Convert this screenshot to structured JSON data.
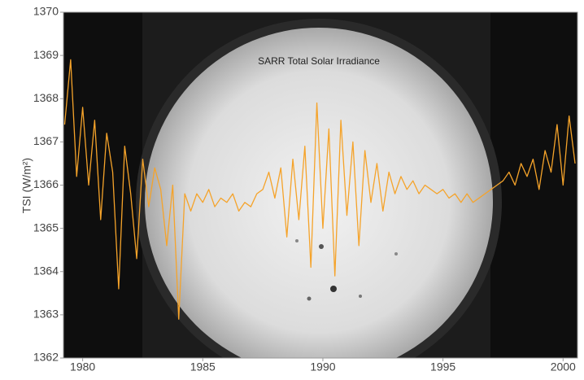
{
  "chart_data": {
    "type": "line",
    "title": "SARR Total Solar Irradiance",
    "y_label": "TSI (W/m²)",
    "x": [
      1979.25,
      1979.5,
      1979.75,
      1980.0,
      1980.25,
      1980.5,
      1980.75,
      1981.0,
      1981.25,
      1981.5,
      1981.75,
      1982.0,
      1982.25,
      1982.5,
      1982.75,
      1983.0,
      1983.25,
      1983.5,
      1983.75,
      1984.0,
      1984.25,
      1984.5,
      1984.75,
      1985.0,
      1985.25,
      1985.5,
      1985.75,
      1986.0,
      1986.25,
      1986.5,
      1986.75,
      1987.0,
      1987.25,
      1987.5,
      1987.75,
      1988.0,
      1988.25,
      1988.5,
      1988.75,
      1989.0,
      1989.25,
      1989.5,
      1989.75,
      1990.0,
      1990.25,
      1990.5,
      1990.75,
      1991.0,
      1991.25,
      1991.5,
      1991.75,
      1992.0,
      1992.25,
      1992.5,
      1992.75,
      1993.0,
      1993.25,
      1993.5,
      1993.75,
      1994.0,
      1994.25,
      1994.5,
      1994.75,
      1995.0,
      1995.25,
      1995.5,
      1995.75,
      1996.0,
      1996.25,
      1996.5,
      1996.75,
      1997.0,
      1997.25,
      1997.5,
      1997.75,
      1998.0,
      1998.25,
      1998.5,
      1998.75,
      1999.0,
      1999.25,
      1999.5,
      1999.75,
      2000.0,
      2000.25,
      2000.5
    ],
    "series": [
      {
        "color": "#f5a32a",
        "values": [
          1367.4,
          1368.9,
          1366.2,
          1367.8,
          1366.0,
          1367.5,
          1365.2,
          1367.2,
          1366.3,
          1363.6,
          1366.9,
          1365.8,
          1364.3,
          1366.6,
          1365.5,
          1366.4,
          1365.9,
          1364.6,
          1366.0,
          1362.9,
          1365.8,
          1365.4,
          1365.8,
          1365.6,
          1365.9,
          1365.5,
          1365.7,
          1365.6,
          1365.8,
          1365.4,
          1365.6,
          1365.5,
          1365.8,
          1365.9,
          1366.3,
          1365.7,
          1366.4,
          1364.8,
          1366.6,
          1365.2,
          1366.9,
          1364.1,
          1367.9,
          1365.0,
          1367.3,
          1363.9,
          1367.5,
          1365.3,
          1367.0,
          1364.6,
          1366.8,
          1365.6,
          1366.5,
          1365.4,
          1366.3,
          1365.8,
          1366.2,
          1365.9,
          1366.1,
          1365.8,
          1366.0,
          1365.9,
          1365.8,
          1365.9,
          1365.7,
          1365.8,
          1365.6,
          1365.8,
          1365.6,
          1365.7,
          1365.8,
          1365.9,
          1366.0,
          1366.1,
          1366.3,
          1366.0,
          1366.5,
          1366.2,
          1366.6,
          1365.9,
          1366.8,
          1366.3,
          1367.4,
          1366.0,
          1367.6,
          1366.5
        ]
      }
    ],
    "xlim": [
      1979.2,
      2000.6
    ],
    "xticks": [
      1980,
      1985,
      1990,
      1995,
      2000
    ],
    "ylim": [
      1362,
      1370
    ],
    "yticks": [
      1362,
      1363,
      1364,
      1365,
      1366,
      1367,
      1368,
      1369,
      1370
    ]
  }
}
